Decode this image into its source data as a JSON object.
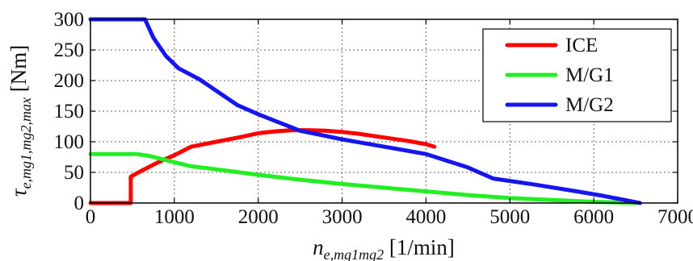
{
  "chart_data": {
    "type": "line",
    "xlim": [
      0,
      7000
    ],
    "ylim": [
      0,
      300
    ],
    "x_ticks": [
      "0",
      "1000",
      "2000",
      "3000",
      "4000",
      "5000",
      "6000",
      "7000"
    ],
    "y_ticks": [
      "0",
      "50",
      "100",
      "150",
      "200",
      "250",
      "300"
    ],
    "grid": true,
    "legend_position": "top-right",
    "xlabel": {
      "main": "n",
      "sub": "e,mg1mg2",
      "unit": " [1/min]"
    },
    "ylabel": {
      "main": "τ",
      "sub": "e,mg1,mg2,max",
      "unit": " [Nm]"
    },
    "series": [
      {
        "name": "ICE",
        "color": "#ff0000",
        "x": [
          0,
          480,
          480,
          600,
          800,
          1000,
          1200,
          1500,
          1800,
          2000,
          2200,
          2400,
          2600,
          2800,
          3000,
          3200,
          3400,
          3600,
          3800,
          4000,
          4100
        ],
        "y": [
          0,
          0,
          43,
          52,
          66,
          78,
          92,
          100,
          108,
          114,
          117,
          119,
          119,
          118,
          116,
          113,
          109,
          105,
          101,
          96,
          92
        ]
      },
      {
        "name": "M/G1",
        "color": "#22ee22",
        "x": [
          0,
          550,
          700,
          900,
          1200,
          1500,
          2000,
          2500,
          3000,
          3500,
          4000,
          4500,
          5000,
          5500,
          6000,
          6500
        ],
        "y": [
          80,
          80,
          77,
          70,
          60,
          55,
          46,
          38,
          31,
          25,
          19,
          13,
          8,
          5,
          2,
          0
        ]
      },
      {
        "name": "M/G2",
        "color": "#1515ee",
        "x": [
          0,
          650,
          750,
          900,
          1050,
          1300,
          1750,
          2000,
          2500,
          3000,
          3500,
          4000,
          4500,
          4800,
          5300,
          5800,
          6100,
          6550
        ],
        "y": [
          300,
          300,
          270,
          240,
          220,
          202,
          160,
          145,
          118,
          104,
          92,
          80,
          58,
          40,
          30,
          19,
          12,
          0
        ]
      }
    ]
  }
}
